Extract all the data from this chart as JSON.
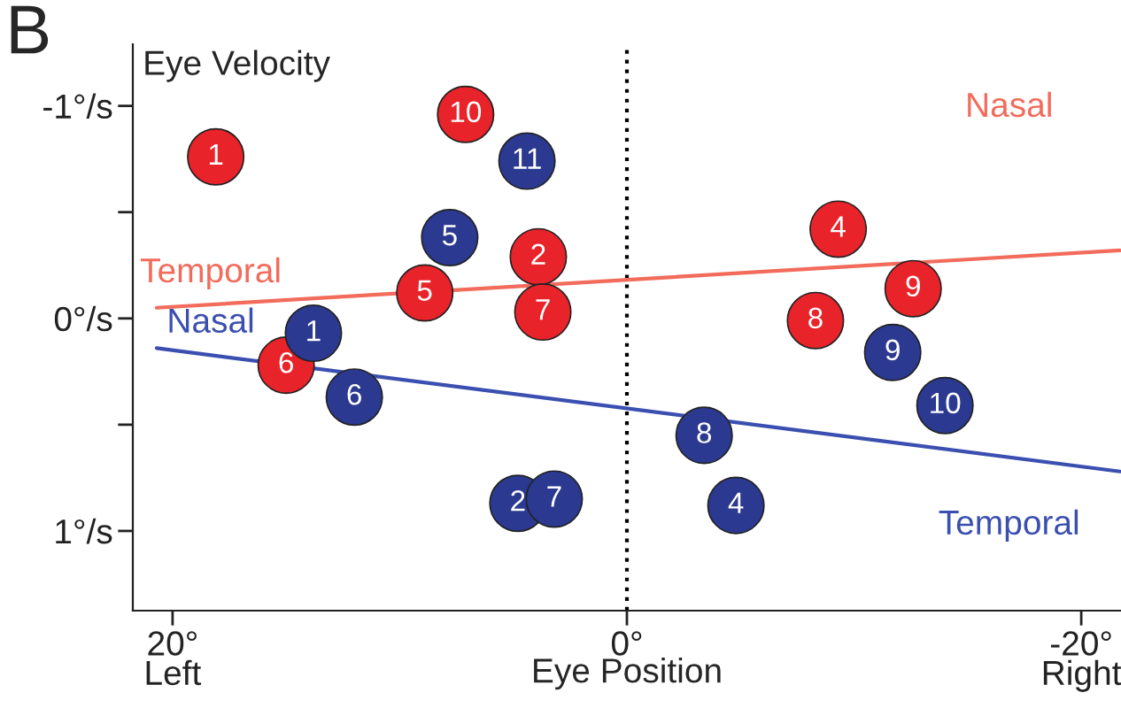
{
  "chart_data": {
    "type": "scatter",
    "ylabel": "Eye Velocity",
    "xlabel": "Eye Position",
    "annotations": [
      "B",
      "Nasal",
      "Temporal",
      "Nasal",
      "Temporal",
      {
        "text": "1",
        "x": 18.1,
        "y": -0.76
      },
      {
        "text": "10",
        "x": 7.1,
        "y": -0.96
      },
      {
        "text": "2",
        "x": 3.9,
        "y": -0.29
      },
      {
        "text": "5",
        "x": 8.9,
        "y": -0.12
      },
      {
        "text": "7",
        "x": 3.7,
        "y": -0.03
      },
      {
        "text": "6",
        "x": 15.0,
        "y": 0.22
      },
      {
        "text": "4",
        "x": -9.3,
        "y": -0.42
      },
      {
        "text": "9",
        "x": -12.6,
        "y": -0.14
      },
      {
        "text": "8",
        "x": -8.3,
        "y": 0.01
      },
      {
        "text": "11",
        "x": 4.4,
        "y": -0.74
      },
      {
        "text": "5",
        "x": 7.8,
        "y": -0.38
      },
      {
        "text": "1",
        "x": 13.8,
        "y": 0.07
      },
      {
        "text": "6",
        "x": 12.0,
        "y": 0.37
      },
      {
        "text": "2",
        "x": 4.8,
        "y": 0.87
      },
      {
        "text": "7",
        "x": 3.2,
        "y": 0.85
      },
      {
        "text": "8",
        "x": -3.4,
        "y": 0.55
      },
      {
        "text": "4",
        "x": -4.8,
        "y": 0.88
      },
      {
        "text": "9",
        "x": -11.7,
        "y": 0.16
      },
      {
        "text": "10",
        "x": -14.0,
        "y": 0.41
      }
    ],
    "xlim": [
      21.75,
      -21.75
    ],
    "ylim": [
      1.375,
      -1.29
    ],
    "xticks": [
      {
        "value": 20,
        "label": "20°\nLeft"
      },
      {
        "value": 0,
        "label": "0°"
      },
      {
        "value": -20,
        "label": "-20°\nRight"
      }
    ],
    "yticks": [
      {
        "value": -1,
        "label": "-1°/s"
      },
      {
        "value": -0.5,
        "label": null
      },
      {
        "value": 0,
        "label": "0°/s"
      },
      {
        "value": 0.5,
        "label": null
      },
      {
        "value": 1,
        "label": "1°/s"
      }
    ],
    "grid": false,
    "ref_lines": [
      {
        "axis": "x",
        "value": 0,
        "color": "#000000",
        "line_style": "dotted"
      }
    ],
    "series": [
      {
        "color": "#e8232a",
        "marker": "circle",
        "x": [
          18.1,
          7.1,
          3.9,
          8.9,
          3.7,
          15.0,
          -9.3,
          -12.6,
          -8.3
        ],
        "values": [
          -0.76,
          -0.96,
          -0.29,
          -0.12,
          -0.03,
          0.22,
          -0.42,
          -0.14,
          0.01
        ]
      },
      {
        "color": "#2b3990",
        "marker": "circle",
        "x": [
          4.4,
          7.8,
          13.8,
          12.0,
          4.8,
          3.2,
          -3.4,
          -4.8,
          -11.7,
          -14.0
        ],
        "values": [
          -0.74,
          -0.38,
          0.07,
          0.37,
          0.87,
          0.85,
          0.55,
          0.88,
          0.16,
          0.41
        ]
      },
      {
        "type": "line",
        "color": "#f26b5b",
        "x": [
          20.7,
          -21.7
        ],
        "values": [
          -0.05,
          -0.32
        ]
      },
      {
        "type": "line",
        "color": "#3a4fb0",
        "x": [
          20.7,
          -21.7
        ],
        "values": [
          0.14,
          0.72
        ]
      }
    ]
  }
}
